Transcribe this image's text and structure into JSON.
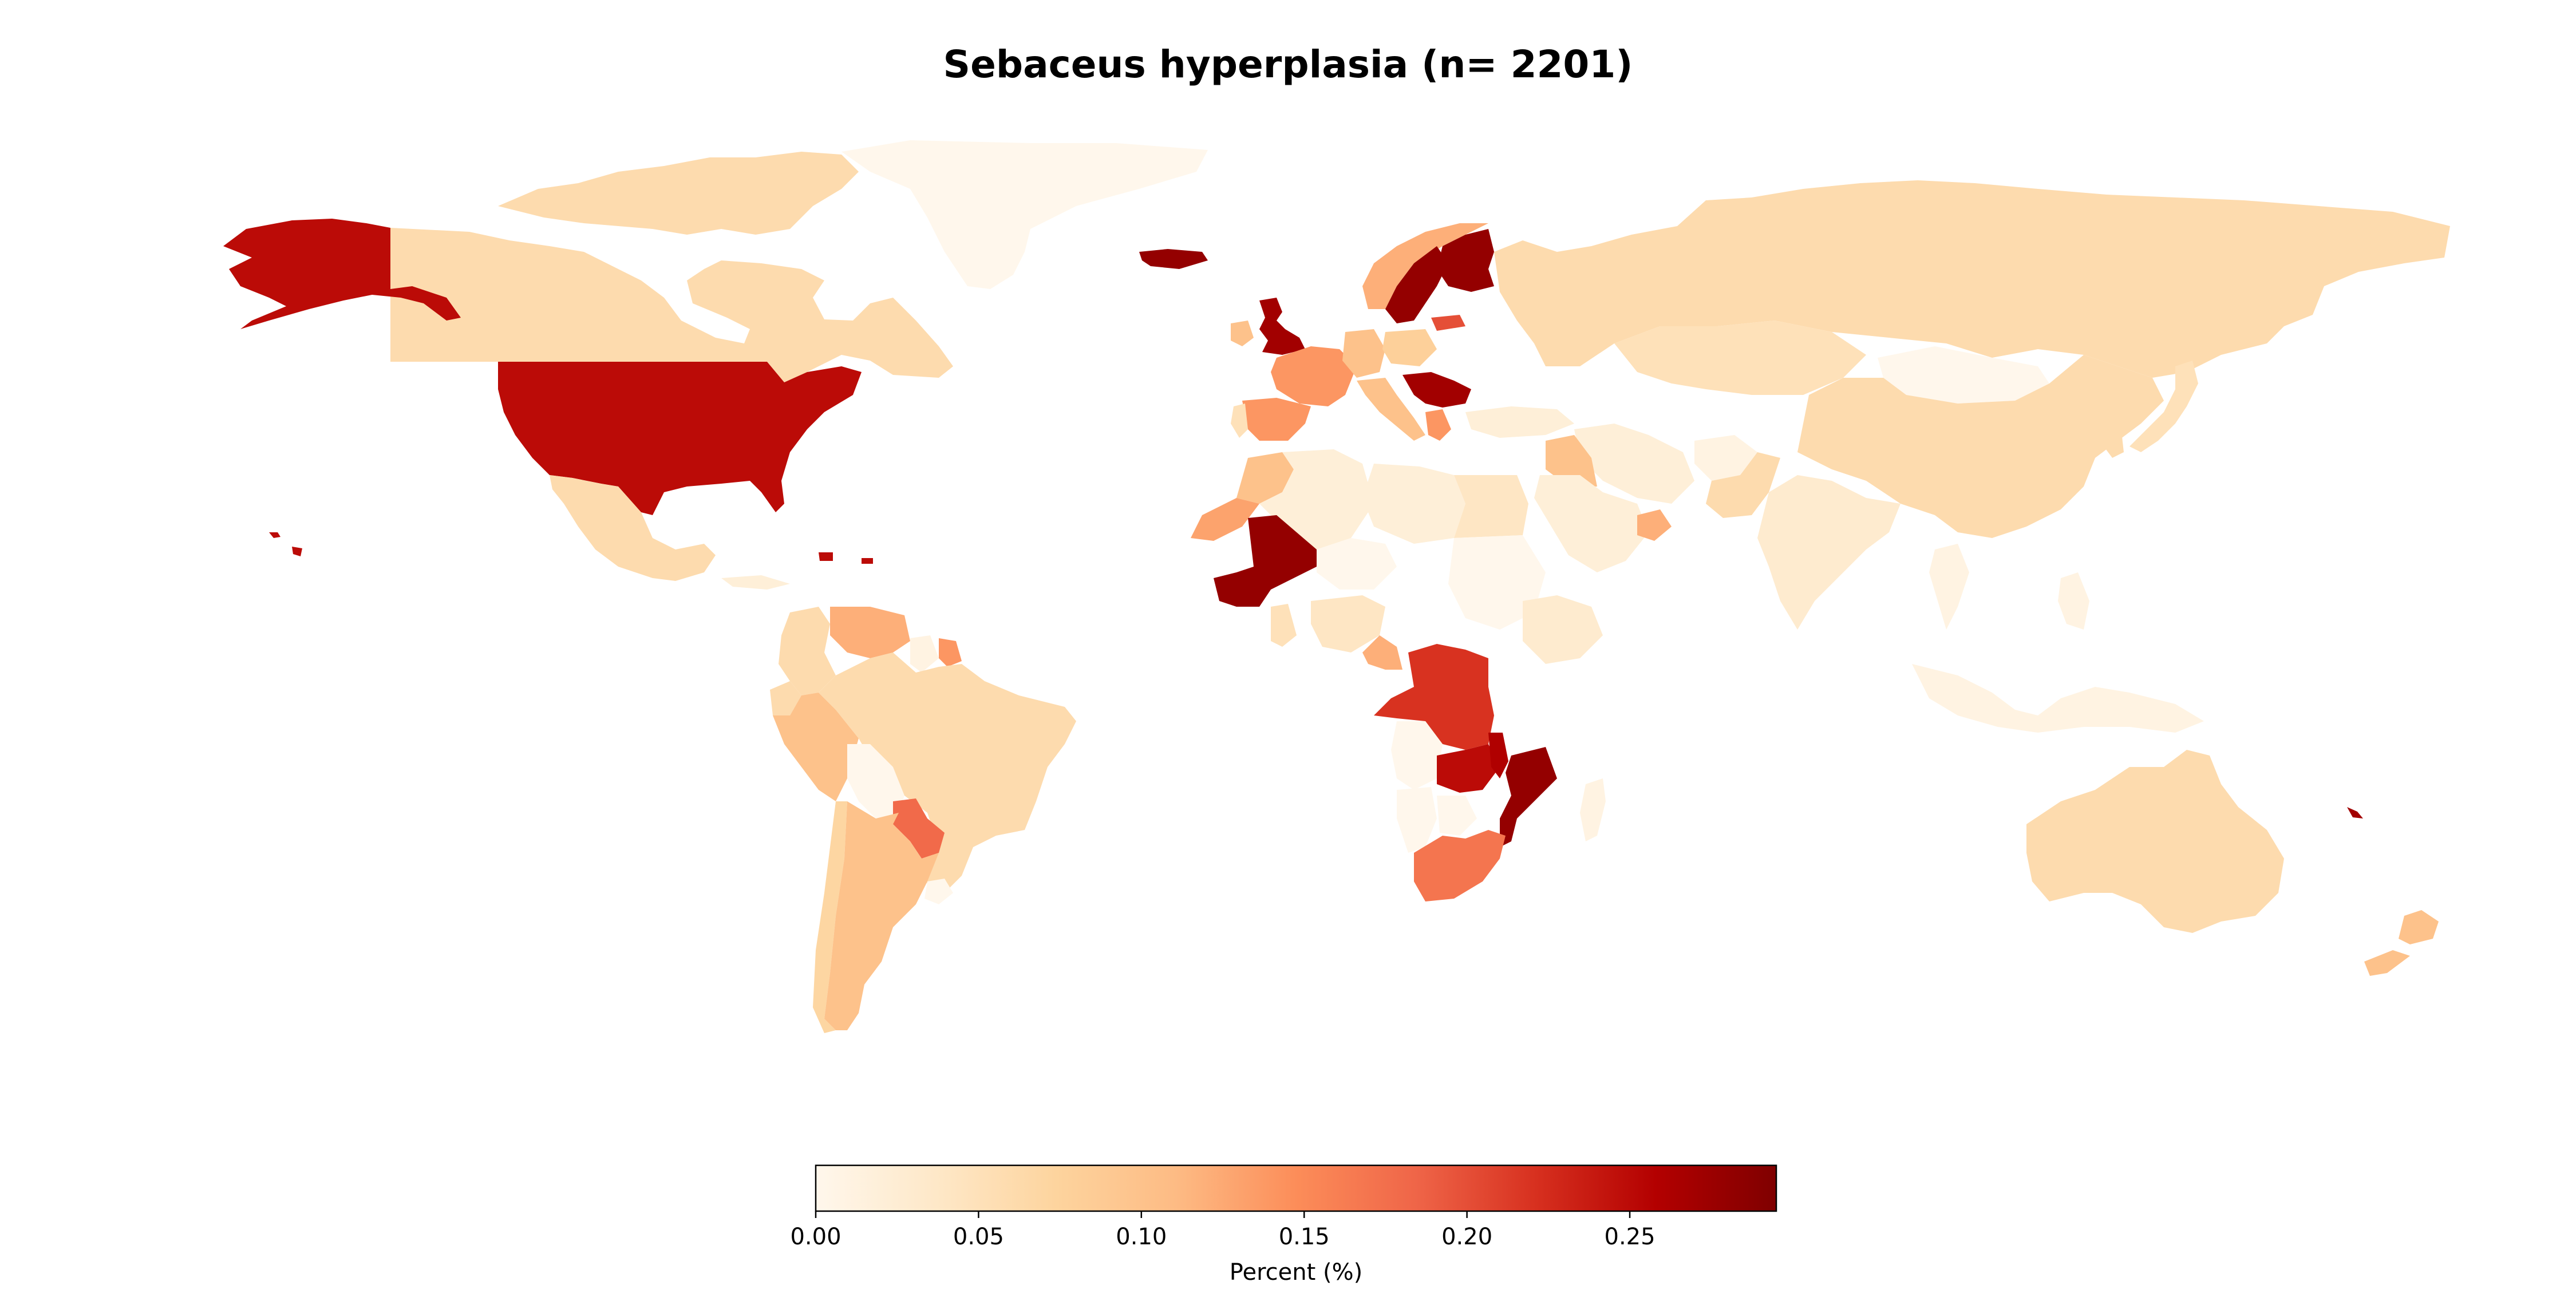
{
  "title": "Sebaceus hyperplasia (n= 2201)",
  "colorbar": {
    "label": "Percent (%)",
    "min": 0.0,
    "max": 0.295,
    "ticks": [
      0.0,
      0.05,
      0.1,
      0.15,
      0.2,
      0.25
    ],
    "tick_labels": [
      "0.00",
      "0.05",
      "0.10",
      "0.15",
      "0.20",
      "0.25"
    ],
    "colormap": "OrRd",
    "stops": [
      "#fff7ec",
      "#fee8c8",
      "#fdd49e",
      "#fdbb84",
      "#fc8d59",
      "#ef6548",
      "#d7301f",
      "#b30000",
      "#7f0000"
    ]
  },
  "chart_data": {
    "type": "choropleth",
    "value_label": "Percent (%)",
    "regions": [
      {
        "name": "Canada",
        "value": 0.06
      },
      {
        "name": "Greenland",
        "value": 0.0
      },
      {
        "name": "Alaska (United States)",
        "value": 0.25
      },
      {
        "name": "United States",
        "value": 0.25
      },
      {
        "name": "Mexico",
        "value": 0.06
      },
      {
        "name": "Cuba",
        "value": 0.02
      },
      {
        "name": "Puerto Rico",
        "value": 0.25
      },
      {
        "name": "Colombia",
        "value": 0.06
      },
      {
        "name": "Venezuela",
        "value": 0.12
      },
      {
        "name": "Guyana",
        "value": 0.01
      },
      {
        "name": "Suriname",
        "value": 0.14
      },
      {
        "name": "Ecuador",
        "value": 0.06
      },
      {
        "name": "Peru",
        "value": 0.1
      },
      {
        "name": "Brazil",
        "value": 0.06
      },
      {
        "name": "Bolivia",
        "value": 0.0
      },
      {
        "name": "Paraguay",
        "value": 0.18
      },
      {
        "name": "Chile",
        "value": 0.07
      },
      {
        "name": "Argentina",
        "value": 0.1
      },
      {
        "name": "Uruguay",
        "value": 0.0
      },
      {
        "name": "Iceland",
        "value": 0.28
      },
      {
        "name": "United Kingdom",
        "value": 0.27
      },
      {
        "name": "Ireland",
        "value": 0.1
      },
      {
        "name": "Norway",
        "value": 0.12
      },
      {
        "name": "Sweden",
        "value": 0.28
      },
      {
        "name": "Finland",
        "value": 0.28
      },
      {
        "name": "Spain",
        "value": 0.14
      },
      {
        "name": "Portugal",
        "value": 0.05
      },
      {
        "name": "France",
        "value": 0.14
      },
      {
        "name": "Germany",
        "value": 0.1
      },
      {
        "name": "Italy",
        "value": 0.1
      },
      {
        "name": "Poland",
        "value": 0.08
      },
      {
        "name": "Latvia",
        "value": 0.2
      },
      {
        "name": "Serbia",
        "value": 0.27
      },
      {
        "name": "Greece",
        "value": 0.14
      },
      {
        "name": "Turkey",
        "value": 0.02
      },
      {
        "name": "Russia",
        "value": 0.06
      },
      {
        "name": "Kazakhstan",
        "value": 0.05
      },
      {
        "name": "Mongolia",
        "value": 0.0
      },
      {
        "name": "China",
        "value": 0.06
      },
      {
        "name": "Japan",
        "value": 0.05
      },
      {
        "name": "South Korea",
        "value": 0.06
      },
      {
        "name": "Iran",
        "value": 0.02
      },
      {
        "name": "Afghanistan",
        "value": 0.01
      },
      {
        "name": "Pakistan",
        "value": 0.06
      },
      {
        "name": "India",
        "value": 0.03
      },
      {
        "name": "Saudi Arabia",
        "value": 0.02
      },
      {
        "name": "Iraq",
        "value": 0.1
      },
      {
        "name": "Oman",
        "value": 0.12
      },
      {
        "name": "Morocco",
        "value": 0.1
      },
      {
        "name": "Western Sahara",
        "value": 0.13
      },
      {
        "name": "Algeria",
        "value": 0.02
      },
      {
        "name": "Libya",
        "value": 0.02
      },
      {
        "name": "Egypt",
        "value": 0.04
      },
      {
        "name": "Sudan",
        "value": 0.0
      },
      {
        "name": "Mali",
        "value": 0.28
      },
      {
        "name": "Niger",
        "value": 0.0
      },
      {
        "name": "Nigeria",
        "value": 0.04
      },
      {
        "name": "Ghana",
        "value": 0.05
      },
      {
        "name": "Cameroon",
        "value": 0.12
      },
      {
        "name": "Ethiopia",
        "value": 0.03
      },
      {
        "name": "DR Congo",
        "value": 0.22
      },
      {
        "name": "Zambia",
        "value": 0.25
      },
      {
        "name": "Malawi",
        "value": 0.26
      },
      {
        "name": "Mozambique",
        "value": 0.28
      },
      {
        "name": "Namibia",
        "value": 0.0
      },
      {
        "name": "Botswana",
        "value": 0.0
      },
      {
        "name": "Angola",
        "value": 0.0
      },
      {
        "name": "South Africa",
        "value": 0.17
      },
      {
        "name": "Madagascar",
        "value": 0.01
      },
      {
        "name": "Indonesia",
        "value": 0.01
      },
      {
        "name": "Philippines",
        "value": 0.01
      },
      {
        "name": "Thailand",
        "value": 0.01
      },
      {
        "name": "Australia",
        "value": 0.06
      },
      {
        "name": "New Zealand",
        "value": 0.1
      },
      {
        "name": "New Caledonia",
        "value": 0.27
      },
      {
        "name": "Hawaii (United States)",
        "value": 0.25
      }
    ]
  }
}
